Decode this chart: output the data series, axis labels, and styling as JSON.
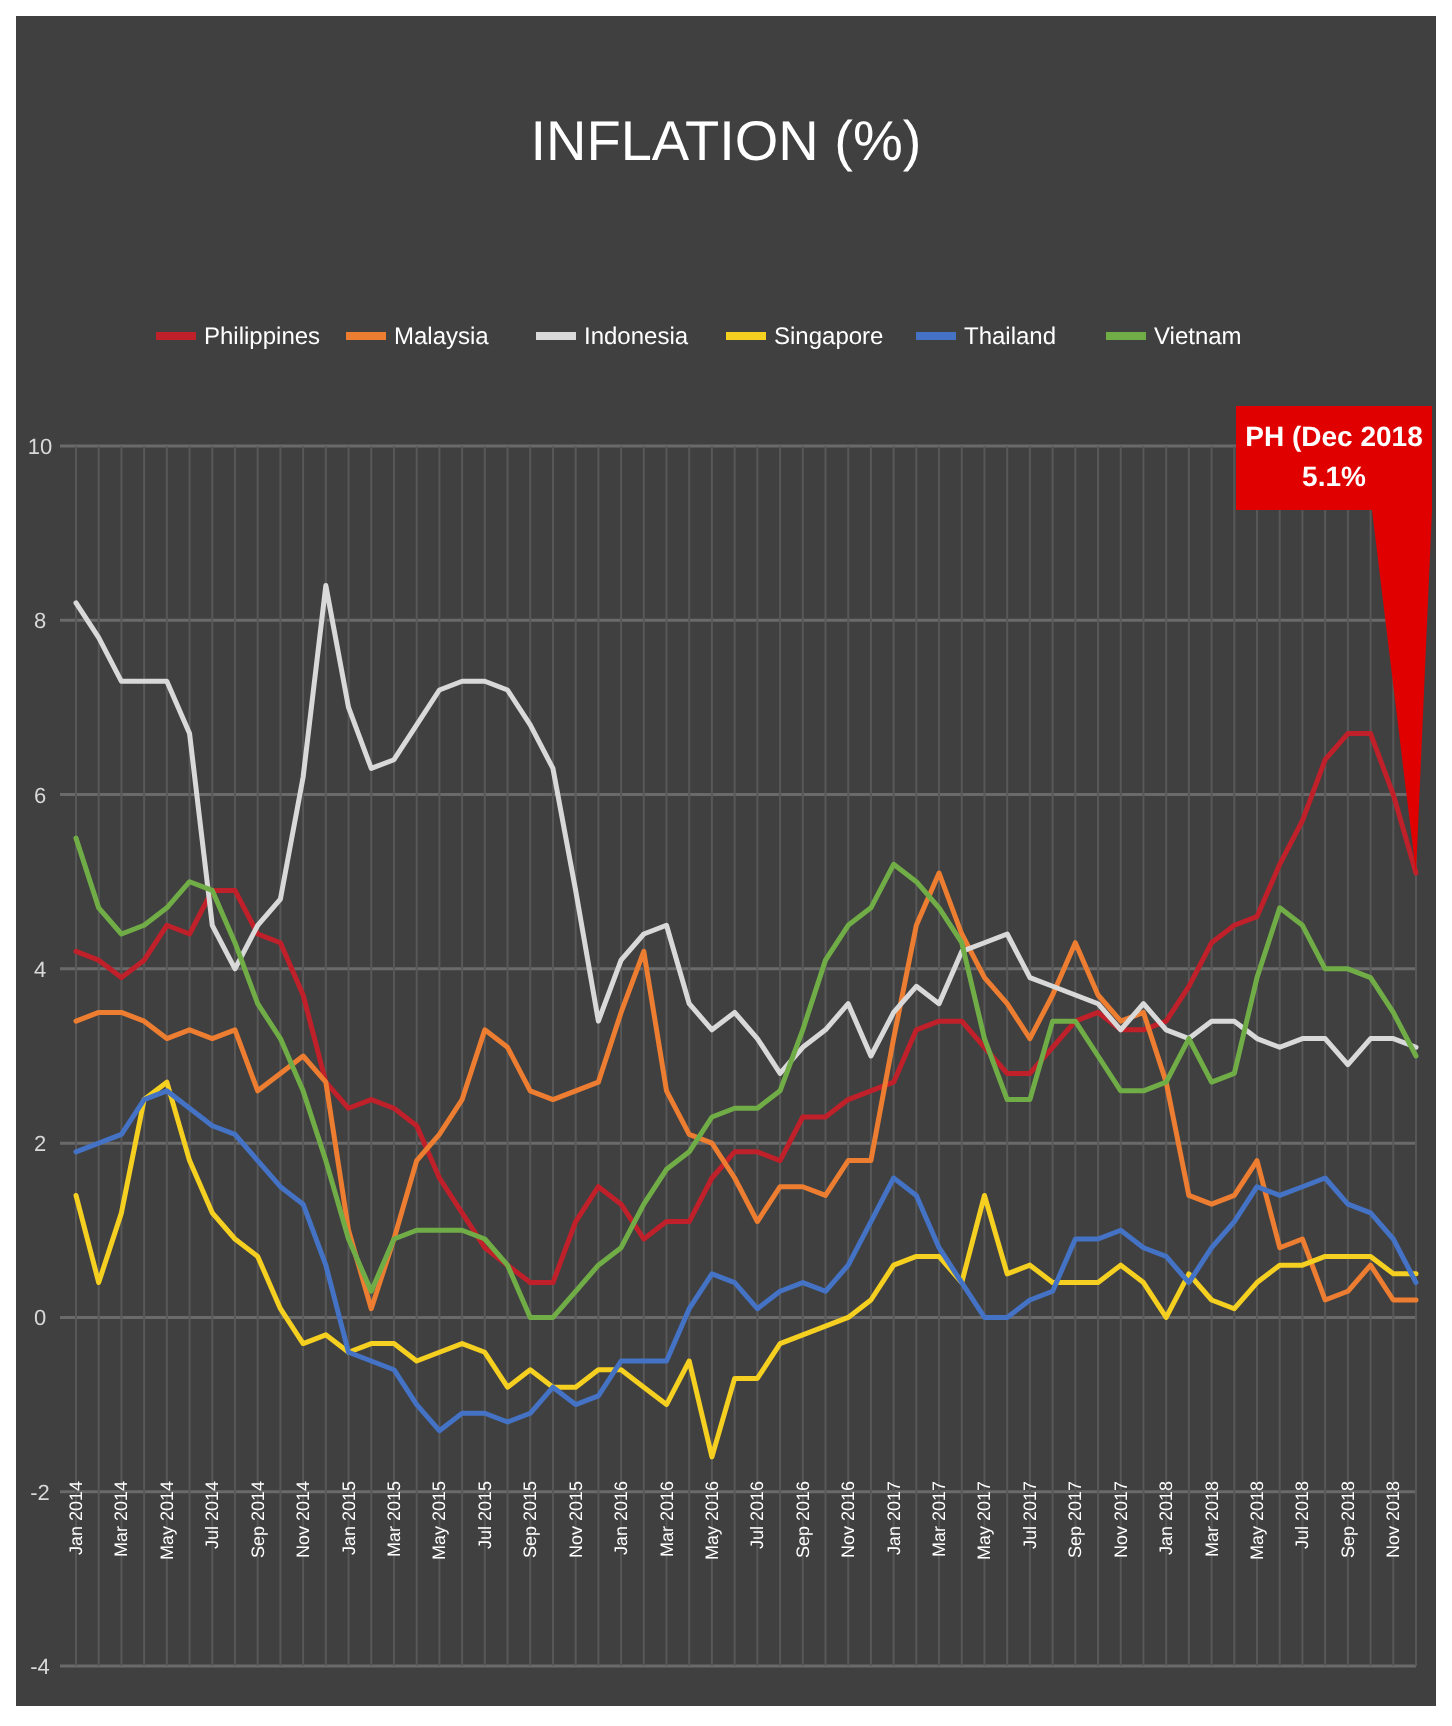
{
  "chart_data": {
    "type": "line",
    "title": "INFLATION (%)",
    "categories": [
      "Jan 2014",
      null,
      "Mar 2014",
      null,
      "May 2014",
      null,
      "Jul 2014",
      null,
      "Sep 2014",
      null,
      "Nov 2014",
      null,
      "Jan 2015",
      null,
      "Mar 2015",
      null,
      "May 2015",
      null,
      "Jul 2015",
      null,
      "Sep 2015",
      null,
      "Nov 2015",
      null,
      "Jan 2016",
      null,
      "Mar 2016",
      null,
      "May 2016",
      null,
      "Jul 2016",
      null,
      "Sep 2016",
      null,
      "Nov 2016",
      null,
      "Jan 2017",
      null,
      "Mar 2017",
      null,
      "May 2017",
      null,
      "Jul 2017",
      null,
      "Sep 2017",
      null,
      "Nov 2017",
      null,
      "Jan 2018",
      null,
      "Mar 2018",
      null,
      "May 2018",
      null,
      "Jul 2018",
      null,
      "Sep 2018",
      null,
      "Nov 2018",
      null
    ],
    "series": [
      {
        "name": "Philippines",
        "color": "#c0202a",
        "values": [
          4.2,
          4.1,
          3.9,
          4.1,
          4.5,
          4.4,
          4.9,
          4.9,
          4.4,
          4.3,
          3.7,
          2.7,
          2.4,
          2.5,
          2.4,
          2.2,
          1.6,
          1.2,
          0.8,
          0.6,
          0.4,
          0.4,
          1.1,
          1.5,
          1.3,
          0.9,
          1.1,
          1.1,
          1.6,
          1.9,
          1.9,
          1.8,
          2.3,
          2.3,
          2.5,
          2.6,
          2.7,
          3.3,
          3.4,
          3.4,
          3.1,
          2.8,
          2.8,
          3.1,
          3.4,
          3.5,
          3.3,
          3.3,
          3.4,
          3.8,
          4.3,
          4.5,
          4.6,
          5.2,
          5.7,
          6.4,
          6.7,
          6.7,
          6.0,
          5.1
        ]
      },
      {
        "name": "Malaysia",
        "color": "#ed7d31",
        "values": [
          3.4,
          3.5,
          3.5,
          3.4,
          3.2,
          3.3,
          3.2,
          3.3,
          2.6,
          2.8,
          3.0,
          2.7,
          1.0,
          0.1,
          0.9,
          1.8,
          2.1,
          2.5,
          3.3,
          3.1,
          2.6,
          2.5,
          2.6,
          2.7,
          3.5,
          4.2,
          2.6,
          2.1,
          2.0,
          1.6,
          1.1,
          1.5,
          1.5,
          1.4,
          1.8,
          1.8,
          3.2,
          4.5,
          5.1,
          4.4,
          3.9,
          3.6,
          3.2,
          3.7,
          4.3,
          3.7,
          3.4,
          3.5,
          2.7,
          1.4,
          1.3,
          1.4,
          1.8,
          0.8,
          0.9,
          0.2,
          0.3,
          0.6,
          0.2,
          0.2
        ]
      },
      {
        "name": "Indonesia",
        "color": "#d9d9d9",
        "values": [
          8.2,
          7.8,
          7.3,
          7.3,
          7.3,
          6.7,
          4.5,
          4.0,
          4.5,
          4.8,
          6.2,
          8.4,
          7.0,
          6.3,
          6.4,
          6.8,
          7.2,
          7.3,
          7.3,
          7.2,
          6.8,
          6.3,
          4.9,
          3.4,
          4.1,
          4.4,
          4.5,
          3.6,
          3.3,
          3.5,
          3.2,
          2.8,
          3.1,
          3.3,
          3.6,
          3.0,
          3.5,
          3.8,
          3.6,
          4.2,
          4.3,
          4.4,
          3.9,
          3.8,
          3.7,
          3.6,
          3.3,
          3.6,
          3.3,
          3.2,
          3.4,
          3.4,
          3.2,
          3.1,
          3.2,
          3.2,
          2.9,
          3.2,
          3.2,
          3.1
        ]
      },
      {
        "name": "Singapore",
        "color": "#f5d020",
        "values": [
          1.4,
          0.4,
          1.2,
          2.5,
          2.7,
          1.8,
          1.2,
          0.9,
          0.7,
          0.1,
          -0.3,
          -0.2,
          -0.4,
          -0.3,
          -0.3,
          -0.5,
          -0.4,
          -0.3,
          -0.4,
          -0.8,
          -0.6,
          -0.8,
          -0.8,
          -0.6,
          -0.6,
          -0.8,
          -1.0,
          -0.5,
          -1.6,
          -0.7,
          -0.7,
          -0.3,
          -0.2,
          -0.1,
          0.0,
          0.2,
          0.6,
          0.7,
          0.7,
          0.4,
          1.4,
          0.5,
          0.6,
          0.4,
          0.4,
          0.4,
          0.6,
          0.4,
          0.0,
          0.5,
          0.2,
          0.1,
          0.4,
          0.6,
          0.6,
          0.7,
          0.7,
          0.7,
          0.5,
          0.5
        ]
      },
      {
        "name": "Thailand",
        "color": "#4472c4",
        "values": [
          1.9,
          2.0,
          2.1,
          2.5,
          2.6,
          2.4,
          2.2,
          2.1,
          1.8,
          1.5,
          1.3,
          0.6,
          -0.4,
          -0.5,
          -0.6,
          -1.0,
          -1.3,
          -1.1,
          -1.1,
          -1.2,
          -1.1,
          -0.8,
          -1.0,
          -0.9,
          -0.5,
          -0.5,
          -0.5,
          0.1,
          0.5,
          0.4,
          0.1,
          0.3,
          0.4,
          0.3,
          0.6,
          1.1,
          1.6,
          1.4,
          0.8,
          0.4,
          0.0,
          0.0,
          0.2,
          0.3,
          0.9,
          0.9,
          1.0,
          0.8,
          0.7,
          0.4,
          0.8,
          1.1,
          1.5,
          1.4,
          1.5,
          1.6,
          1.3,
          1.2,
          0.9,
          0.4
        ]
      },
      {
        "name": "Vietnam",
        "color": "#70ad47",
        "values": [
          5.5,
          4.7,
          4.4,
          4.5,
          4.7,
          5.0,
          4.9,
          4.3,
          3.6,
          3.2,
          2.6,
          1.8,
          0.9,
          0.3,
          0.9,
          1.0,
          1.0,
          1.0,
          0.9,
          0.6,
          0.0,
          0.0,
          0.3,
          0.6,
          0.8,
          1.3,
          1.7,
          1.9,
          2.3,
          2.4,
          2.4,
          2.6,
          3.3,
          4.1,
          4.5,
          4.7,
          5.2,
          5.0,
          4.7,
          4.3,
          3.2,
          2.5,
          2.5,
          3.4,
          3.4,
          3.0,
          2.6,
          2.6,
          2.7,
          3.2,
          2.7,
          2.8,
          3.9,
          4.7,
          4.5,
          4.0,
          4.0,
          3.9,
          3.5,
          3.0
        ]
      }
    ],
    "ylim": [
      -4,
      10
    ],
    "yticks": [
      -4,
      -2,
      0,
      2,
      4,
      6,
      8,
      10
    ],
    "grid": true,
    "legend": "top",
    "line_style": "solid",
    "marker": "none",
    "annotations": [
      "PH (Dec 2018\n5.1%"
    ]
  }
}
